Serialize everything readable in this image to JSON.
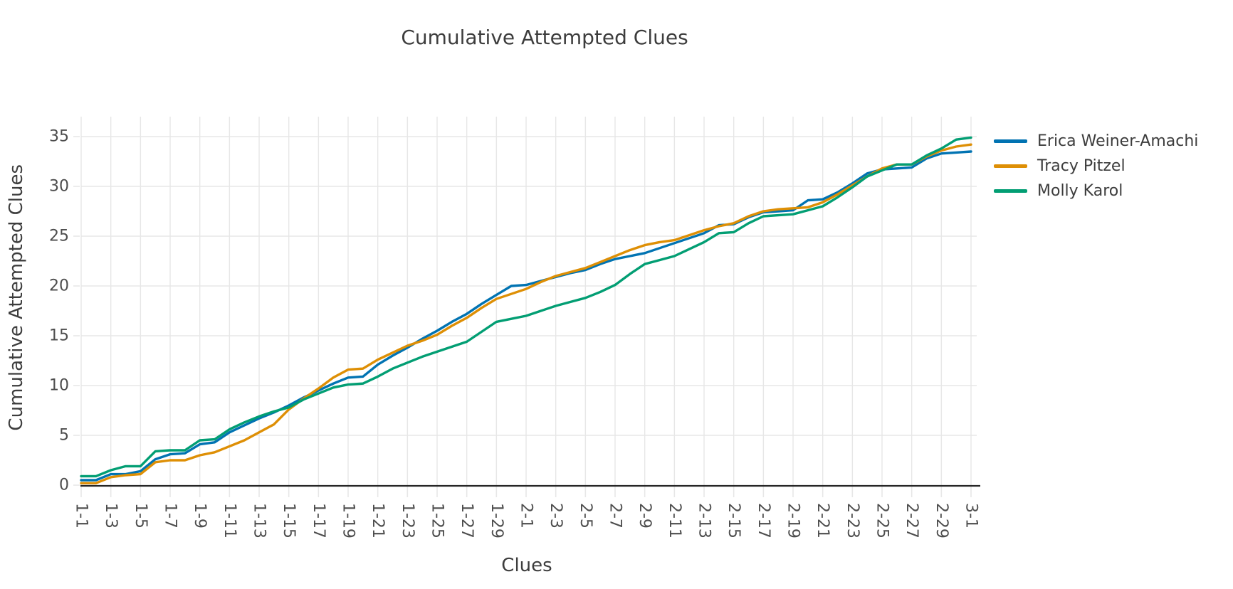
{
  "chart_data": {
    "type": "line",
    "title": "Cumulative Attempted Clues",
    "xlabel": "Clues",
    "ylabel": "Cumulative Attempted Clues",
    "ylim": [
      0,
      35
    ],
    "y_ticks": [
      0,
      5,
      10,
      15,
      20,
      25,
      30,
      35
    ],
    "grid": true,
    "x_tick_step": 2,
    "legend_position": "top-right-outside",
    "x_tick_labels": [
      "1-1",
      "1-3",
      "1-5",
      "1-7",
      "1-9",
      "1-11",
      "1-13",
      "1-15",
      "1-17",
      "1-19",
      "1-21",
      "1-23",
      "1-25",
      "1-27",
      "1-29",
      "2-1",
      "2-3",
      "2-5",
      "2-7",
      "2-9",
      "2-11",
      "2-13",
      "2-15",
      "2-17",
      "2-19",
      "2-21",
      "2-23",
      "2-25",
      "2-27",
      "2-29",
      "3-1"
    ],
    "categories": [
      "1-1",
      "1-2",
      "1-3",
      "1-4",
      "1-5",
      "1-6",
      "1-7",
      "1-8",
      "1-9",
      "1-10",
      "1-11",
      "1-12",
      "1-13",
      "1-14",
      "1-15",
      "1-16",
      "1-17",
      "1-18",
      "1-19",
      "1-20",
      "1-21",
      "1-22",
      "1-23",
      "1-24",
      "1-25",
      "1-26",
      "1-27",
      "1-28",
      "1-29",
      "1-30",
      "2-1",
      "2-2",
      "2-3",
      "2-4",
      "2-5",
      "2-6",
      "2-7",
      "2-8",
      "2-9",
      "2-10",
      "2-11",
      "2-12",
      "2-13",
      "2-14",
      "2-15",
      "2-16",
      "2-17",
      "2-18",
      "2-19",
      "2-20",
      "2-21",
      "2-22",
      "2-23",
      "2-24",
      "2-25",
      "2-26",
      "2-27",
      "2-28",
      "2-29",
      "2-30",
      "3-1"
    ],
    "series": [
      {
        "name": "Erica Weiner-Amachi",
        "color": "#0173b2",
        "values": [
          0.5,
          0.5,
          1.1,
          1.1,
          1.4,
          2.6,
          3.1,
          3.2,
          4.1,
          4.3,
          5.3,
          6.0,
          6.7,
          7.3,
          8.0,
          8.8,
          9.5,
          10.2,
          10.8,
          10.9,
          12.1,
          13.0,
          13.8,
          14.7,
          15.5,
          16.4,
          17.2,
          18.2,
          19.1,
          20.0,
          20.1,
          20.5,
          20.9,
          21.3,
          21.6,
          22.2,
          22.7,
          23.0,
          23.3,
          23.8,
          24.3,
          24.8,
          25.3,
          26.1,
          26.2,
          26.9,
          27.4,
          27.5,
          27.6,
          28.6,
          28.7,
          29.4,
          30.3,
          31.3,
          31.7,
          31.8,
          31.9,
          32.8,
          33.3,
          33.4,
          33.5
        ]
      },
      {
        "name": "Tracy Pitzel",
        "color": "#de8f05",
        "values": [
          0.2,
          0.2,
          0.8,
          1.0,
          1.1,
          2.3,
          2.5,
          2.5,
          3.0,
          3.3,
          3.9,
          4.5,
          5.3,
          6.1,
          7.6,
          8.7,
          9.7,
          10.8,
          11.6,
          11.7,
          12.6,
          13.3,
          14.0,
          14.5,
          15.1,
          16.0,
          16.8,
          17.8,
          18.7,
          19.2,
          19.7,
          20.4,
          21.0,
          21.4,
          21.8,
          22.4,
          23.0,
          23.6,
          24.1,
          24.4,
          24.6,
          25.1,
          25.6,
          26.0,
          26.3,
          27.0,
          27.5,
          27.7,
          27.8,
          27.9,
          28.4,
          29.2,
          30.1,
          31.0,
          31.8,
          32.2,
          32.2,
          33.0,
          33.6,
          34.0,
          34.2
        ]
      },
      {
        "name": "Molly Karol",
        "color": "#029e73",
        "values": [
          0.9,
          0.9,
          1.5,
          1.9,
          1.9,
          3.4,
          3.5,
          3.5,
          4.5,
          4.6,
          5.6,
          6.3,
          6.9,
          7.4,
          7.8,
          8.6,
          9.2,
          9.8,
          10.1,
          10.2,
          10.9,
          11.7,
          12.3,
          12.9,
          13.4,
          13.9,
          14.4,
          15.4,
          16.4,
          16.7,
          17.0,
          17.5,
          18.0,
          18.4,
          18.8,
          19.4,
          20.1,
          21.2,
          22.2,
          22.6,
          23.0,
          23.7,
          24.4,
          25.3,
          25.4,
          26.3,
          27.0,
          27.1,
          27.2,
          27.6,
          28.0,
          28.9,
          29.9,
          31.0,
          31.6,
          32.2,
          32.2,
          33.1,
          33.8,
          34.7,
          34.9
        ]
      }
    ],
    "style": {
      "background": "#ffffff",
      "grid_color": "#e7e7e7",
      "axis_color": "#262626",
      "tick_label_color": "#4d4d4d",
      "text_color": "#3d3d3d"
    }
  }
}
